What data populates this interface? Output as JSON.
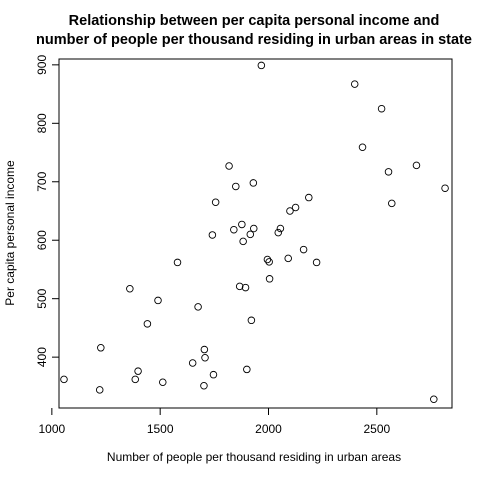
{
  "chart_data": {
    "type": "scatter",
    "title": [
      "Relationship between per capita personal income and",
      "number of people per thousand residing in urban areas in state"
    ],
    "xlabel": "Number of people per thousand residing in urban areas",
    "ylabel": "Per capita personal income",
    "xlim": [
      1033,
      2847
    ],
    "ylim": [
      313,
      910
    ],
    "xticks": [
      1000,
      1500,
      2000,
      2500
    ],
    "yticks": [
      400,
      500,
      600,
      700,
      800,
      900
    ],
    "grid": false,
    "marker": "open-circle",
    "points": [
      [
        1056,
        362
      ],
      [
        1221,
        344
      ],
      [
        1226,
        416
      ],
      [
        1360,
        517
      ],
      [
        1385,
        362
      ],
      [
        1398,
        376
      ],
      [
        1441,
        457
      ],
      [
        1490,
        497
      ],
      [
        1512,
        357
      ],
      [
        1580,
        562
      ],
      [
        1650,
        390
      ],
      [
        1675,
        486
      ],
      [
        1702,
        351
      ],
      [
        1704,
        413
      ],
      [
        1707,
        399
      ],
      [
        1741,
        609
      ],
      [
        1746,
        370
      ],
      [
        1756,
        665
      ],
      [
        1818,
        727
      ],
      [
        1840,
        618
      ],
      [
        1849,
        692
      ],
      [
        1867,
        521
      ],
      [
        1877,
        627
      ],
      [
        1883,
        598
      ],
      [
        1894,
        519
      ],
      [
        1900,
        379
      ],
      [
        1916,
        610
      ],
      [
        1921,
        463
      ],
      [
        1930,
        698
      ],
      [
        1932,
        620
      ],
      [
        1967,
        899
      ],
      [
        1995,
        567
      ],
      [
        2003,
        563
      ],
      [
        2005,
        534
      ],
      [
        2045,
        613
      ],
      [
        2055,
        620
      ],
      [
        2091,
        569
      ],
      [
        2099,
        650
      ],
      [
        2125,
        656
      ],
      [
        2162,
        584
      ],
      [
        2186,
        673
      ],
      [
        2222,
        562
      ],
      [
        2398,
        867
      ],
      [
        2434,
        759
      ],
      [
        2522,
        825
      ],
      [
        2554,
        717
      ],
      [
        2569,
        663
      ],
      [
        2683,
        728
      ],
      [
        2763,
        328
      ],
      [
        2815,
        689
      ]
    ]
  }
}
